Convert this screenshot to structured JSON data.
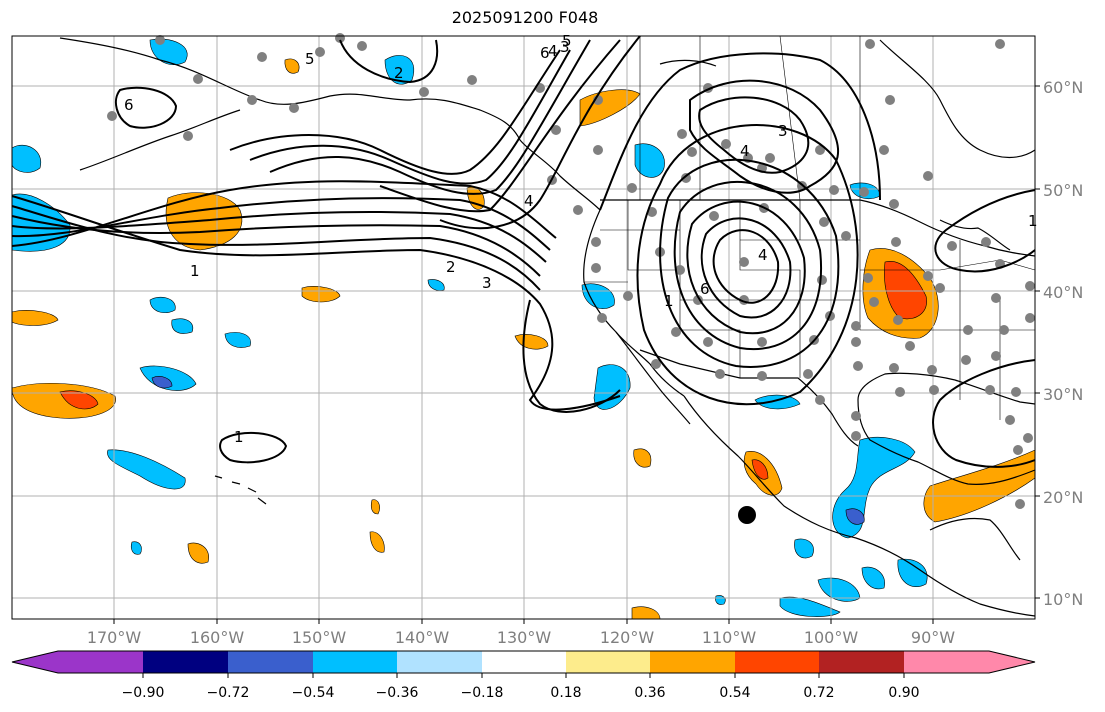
{
  "title": "2025091200 F048",
  "map": {
    "lon_labels": [
      "170°W",
      "160°W",
      "150°W",
      "140°W",
      "130°W",
      "120°W",
      "110°W",
      "100°W",
      "90°W"
    ],
    "lat_labels": [
      "60°N",
      "50°N",
      "40°N",
      "30°N",
      "20°N",
      "10°N"
    ],
    "contour_labels": [
      "1",
      "2",
      "3",
      "4",
      "5",
      "6",
      "1",
      "2",
      "3",
      "4",
      "5",
      "6",
      "1",
      "3",
      "4",
      "4",
      "6",
      "1"
    ]
  },
  "colorbar": {
    "tick_labels": [
      "−0.90",
      "−0.72",
      "−0.54",
      "−0.36",
      "−0.18",
      "0.18",
      "0.36",
      "0.54",
      "0.72",
      "0.90"
    ],
    "colors": [
      "#9b35c9",
      "#000080",
      "#3a5fcd",
      "#00bfff",
      "#b0e2ff",
      "#ffffff",
      "#fdec8c",
      "#ffa500",
      "#ff4500",
      "#b22222",
      "#ff88aa"
    ]
  }
}
